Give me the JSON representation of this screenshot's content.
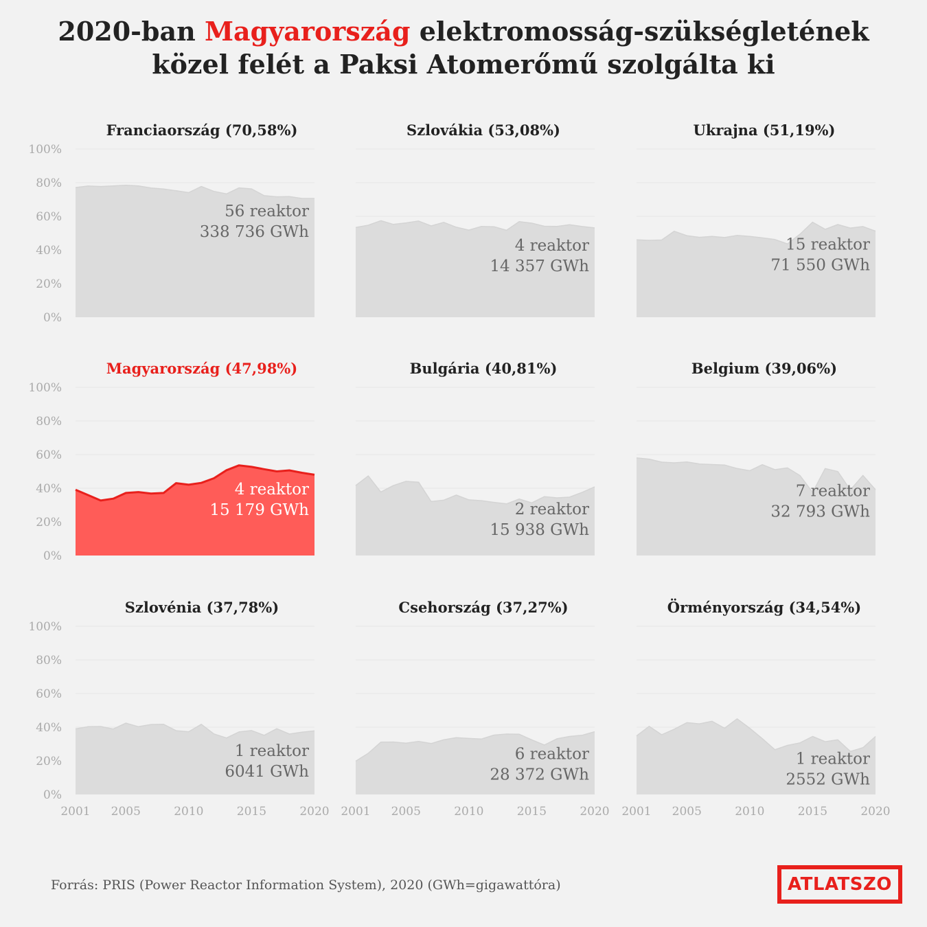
{
  "title": {
    "line1_pre": "2020-ban ",
    "line1_highlight": "Magyarország",
    "line1_post": " elektromosság-szükségletének",
    "line2": "közel felét a Paksi Atomerőmű szolgálta ki"
  },
  "source": "Forrás: PRIS (Power Reactor Information System), 2020 (GWh=gigawattóra)",
  "logo": "ATLATSZO",
  "colors": {
    "gray_area": "#dcdcdc",
    "highlight_area": "#ff5c58",
    "highlight_line": "#e8201c",
    "text_dark": "#222222",
    "text_gray": "#666666",
    "axis_text": "#aaaaaa",
    "grid": "#e6e6e6"
  },
  "chart_data": [
    {
      "type": "area",
      "country": "Franciaország",
      "title": "Franciaország (70,58%)",
      "reactors": "56 reaktor",
      "gwh": "338 736 GWh",
      "highlight": false,
      "x": [
        2001,
        2002,
        2003,
        2004,
        2005,
        2006,
        2007,
        2008,
        2009,
        2010,
        2011,
        2012,
        2013,
        2014,
        2015,
        2016,
        2017,
        2018,
        2019,
        2020
      ],
      "values": [
        77.1,
        78.0,
        77.7,
        78.1,
        78.5,
        78.1,
        76.8,
        76.2,
        75.2,
        74.1,
        77.7,
        74.8,
        73.3,
        76.9,
        76.3,
        72.3,
        71.6,
        71.7,
        70.6,
        70.6
      ],
      "ylim": [
        0,
        100
      ],
      "yticks": [
        "0%",
        "20%",
        "40%",
        "60%",
        "80%",
        "100%"
      ],
      "xticks": [
        "2001",
        "2005",
        "2010",
        "2015",
        "2020"
      ]
    },
    {
      "type": "area",
      "country": "Szlovákia",
      "title": "Szlovákia (53,08%)",
      "reactors": "4 reaktor",
      "gwh": "14 357 GWh",
      "highlight": false,
      "x": [
        2001,
        2002,
        2003,
        2004,
        2005,
        2006,
        2007,
        2008,
        2009,
        2010,
        2011,
        2012,
        2013,
        2014,
        2015,
        2016,
        2017,
        2018,
        2019,
        2020
      ],
      "values": [
        53.4,
        54.7,
        57.4,
        55.2,
        56.1,
        57.2,
        54.3,
        56.4,
        53.5,
        51.8,
        54.0,
        53.8,
        51.7,
        56.8,
        55.9,
        54.1,
        54.0,
        55.0,
        53.9,
        53.1
      ],
      "ylim": [
        0,
        100
      ],
      "yticks": [
        "0%",
        "20%",
        "40%",
        "60%",
        "80%",
        "100%"
      ],
      "xticks": [
        "2001",
        "2005",
        "2010",
        "2015",
        "2020"
      ]
    },
    {
      "type": "area",
      "country": "Ukrajna",
      "title": "Ukrajna (51,19%)",
      "reactors": "15 reaktor",
      "gwh": "71 550 GWh",
      "highlight": false,
      "x": [
        2001,
        2002,
        2003,
        2004,
        2005,
        2006,
        2007,
        2008,
        2009,
        2010,
        2011,
        2012,
        2013,
        2014,
        2015,
        2016,
        2017,
        2018,
        2019,
        2020
      ],
      "values": [
        46.0,
        45.7,
        45.9,
        51.1,
        48.5,
        47.5,
        48.1,
        47.4,
        48.6,
        48.1,
        47.2,
        46.2,
        43.6,
        49.4,
        56.5,
        52.3,
        55.1,
        53.0,
        53.9,
        51.2
      ],
      "ylim": [
        0,
        100
      ],
      "yticks": [
        "0%",
        "20%",
        "40%",
        "60%",
        "80%",
        "100%"
      ],
      "xticks": [
        "2001",
        "2005",
        "2010",
        "2015",
        "2020"
      ]
    },
    {
      "type": "area",
      "country": "Magyarország",
      "title": "Magyarország (47,98%)",
      "reactors": "4 reaktor",
      "gwh": "15 179 GWh",
      "highlight": true,
      "x": [
        2001,
        2002,
        2003,
        2004,
        2005,
        2006,
        2007,
        2008,
        2009,
        2010,
        2011,
        2012,
        2013,
        2014,
        2015,
        2016,
        2017,
        2018,
        2019,
        2020
      ],
      "values": [
        39.1,
        35.9,
        32.7,
        33.8,
        37.2,
        37.7,
        36.8,
        37.2,
        43.0,
        42.1,
        43.2,
        45.9,
        50.7,
        53.6,
        52.7,
        51.3,
        50.0,
        50.6,
        49.2,
        48.0
      ],
      "ylim": [
        0,
        100
      ],
      "yticks": [
        "0%",
        "20%",
        "40%",
        "60%",
        "80%",
        "100%"
      ],
      "xticks": [
        "2001",
        "2005",
        "2010",
        "2015",
        "2020"
      ]
    },
    {
      "type": "area",
      "country": "Bulgária",
      "title": "Bulgária (40,81%)",
      "reactors": "2 reaktor",
      "gwh": "15 938 GWh",
      "highlight": false,
      "x": [
        2001,
        2002,
        2003,
        2004,
        2005,
        2006,
        2007,
        2008,
        2009,
        2010,
        2011,
        2012,
        2013,
        2014,
        2015,
        2016,
        2017,
        2018,
        2019,
        2020
      ],
      "values": [
        41.6,
        47.3,
        37.7,
        41.6,
        44.1,
        43.6,
        32.1,
        32.9,
        35.9,
        33.1,
        32.6,
        31.6,
        30.7,
        33.6,
        31.3,
        35.0,
        34.3,
        34.7,
        37.5,
        40.8
      ],
      "ylim": [
        0,
        100
      ],
      "yticks": [
        "0%",
        "20%",
        "40%",
        "60%",
        "80%",
        "100%"
      ],
      "xticks": [
        "2001",
        "2005",
        "2010",
        "2015",
        "2020"
      ]
    },
    {
      "type": "area",
      "country": "Belgium",
      "title": "Belgium (39,06%)",
      "reactors": "7 reaktor",
      "gwh": "32 793 GWh",
      "highlight": false,
      "x": [
        2001,
        2002,
        2003,
        2004,
        2005,
        2006,
        2007,
        2008,
        2009,
        2010,
        2011,
        2012,
        2013,
        2014,
        2015,
        2016,
        2017,
        2018,
        2019,
        2020
      ],
      "values": [
        58.0,
        57.3,
        55.5,
        55.1,
        55.6,
        54.4,
        54.1,
        53.8,
        51.7,
        50.4,
        54.0,
        51.0,
        52.1,
        47.5,
        37.5,
        51.7,
        49.9,
        39.0,
        47.6,
        39.1
      ],
      "ylim": [
        0,
        100
      ],
      "yticks": [
        "0%",
        "20%",
        "40%",
        "60%",
        "80%",
        "100%"
      ],
      "xticks": [
        "2001",
        "2005",
        "2010",
        "2015",
        "2020"
      ]
    },
    {
      "type": "area",
      "country": "Szlovénia",
      "title": "Szlovénia (37,78%)",
      "reactors": "1 reaktor",
      "gwh": "6041 GWh",
      "highlight": false,
      "x": [
        2001,
        2002,
        2003,
        2004,
        2005,
        2006,
        2007,
        2008,
        2009,
        2010,
        2011,
        2012,
        2013,
        2014,
        2015,
        2016,
        2017,
        2018,
        2019,
        2020
      ],
      "values": [
        39.0,
        40.3,
        40.4,
        38.9,
        42.4,
        40.3,
        41.6,
        41.7,
        37.9,
        37.3,
        41.7,
        36.0,
        33.6,
        37.2,
        38.0,
        35.2,
        39.1,
        35.9,
        37.0,
        37.8
      ],
      "ylim": [
        0,
        100
      ],
      "yticks": [
        "0%",
        "20%",
        "40%",
        "60%",
        "80%",
        "100%"
      ],
      "xticks": [
        "2001",
        "2005",
        "2010",
        "2015",
        "2020"
      ]
    },
    {
      "type": "area",
      "country": "Csehország",
      "title": "Csehország (37,27%)",
      "reactors": "6 reaktor",
      "gwh": "28 372 GWh",
      "highlight": false,
      "x": [
        2001,
        2002,
        2003,
        2004,
        2005,
        2006,
        2007,
        2008,
        2009,
        2010,
        2011,
        2012,
        2013,
        2014,
        2015,
        2016,
        2017,
        2018,
        2019,
        2020
      ],
      "values": [
        19.8,
        24.5,
        31.1,
        31.2,
        30.5,
        31.5,
        30.3,
        32.5,
        33.8,
        33.3,
        33.0,
        35.3,
        35.9,
        35.8,
        32.5,
        29.4,
        33.1,
        34.5,
        35.2,
        37.3
      ],
      "ylim": [
        0,
        100
      ],
      "yticks": [
        "0%",
        "20%",
        "40%",
        "60%",
        "80%",
        "100%"
      ],
      "xticks": [
        "2001",
        "2005",
        "2010",
        "2015",
        "2020"
      ]
    },
    {
      "type": "area",
      "country": "Örményország",
      "title": "Örményország (34,54%)",
      "reactors": "1 reaktor",
      "gwh": "2552 GWh",
      "highlight": false,
      "x": [
        2001,
        2002,
        2003,
        2004,
        2005,
        2006,
        2007,
        2008,
        2009,
        2010,
        2011,
        2012,
        2013,
        2014,
        2015,
        2016,
        2017,
        2018,
        2019,
        2020
      ],
      "values": [
        34.8,
        40.5,
        35.5,
        38.8,
        42.7,
        42.0,
        43.5,
        39.4,
        45.0,
        39.4,
        33.2,
        26.6,
        29.2,
        30.7,
        34.5,
        31.4,
        32.5,
        25.6,
        27.8,
        34.5
      ],
      "ylim": [
        0,
        100
      ],
      "yticks": [
        "0%",
        "20%",
        "40%",
        "60%",
        "80%",
        "100%"
      ],
      "xticks": [
        "2001",
        "2005",
        "2010",
        "2015",
        "2020"
      ]
    }
  ]
}
